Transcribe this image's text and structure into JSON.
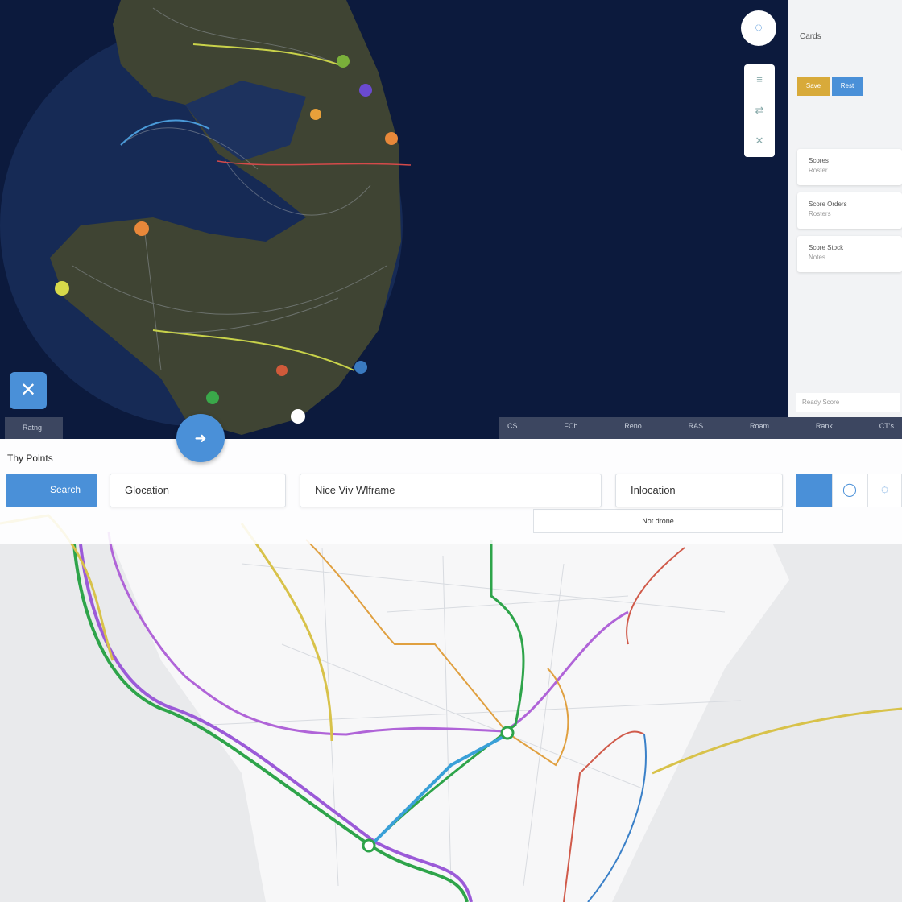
{
  "globe_panel": {
    "tag": "Ratng",
    "status_bar": [
      "CS",
      "FCh",
      "Reno",
      "RAS",
      "Roam",
      "Rank",
      "CT's"
    ]
  },
  "side_panel": {
    "title": "Cards",
    "tabs": [
      "Save",
      "Rest"
    ],
    "cards": [
      {
        "title": "Scores",
        "subtitle": "Roster"
      },
      {
        "title": "Score Orders",
        "subtitle": "Rosters"
      },
      {
        "title": "Score Stock",
        "subtitle": "Notes"
      }
    ],
    "footer": "Ready Score"
  },
  "trip_panel": {
    "title": "Thy Points",
    "search_button": "Search",
    "fields": [
      "Glocation",
      "Nice Viv Wlframe",
      "Inlocation"
    ],
    "dropdown": "Not drone"
  }
}
